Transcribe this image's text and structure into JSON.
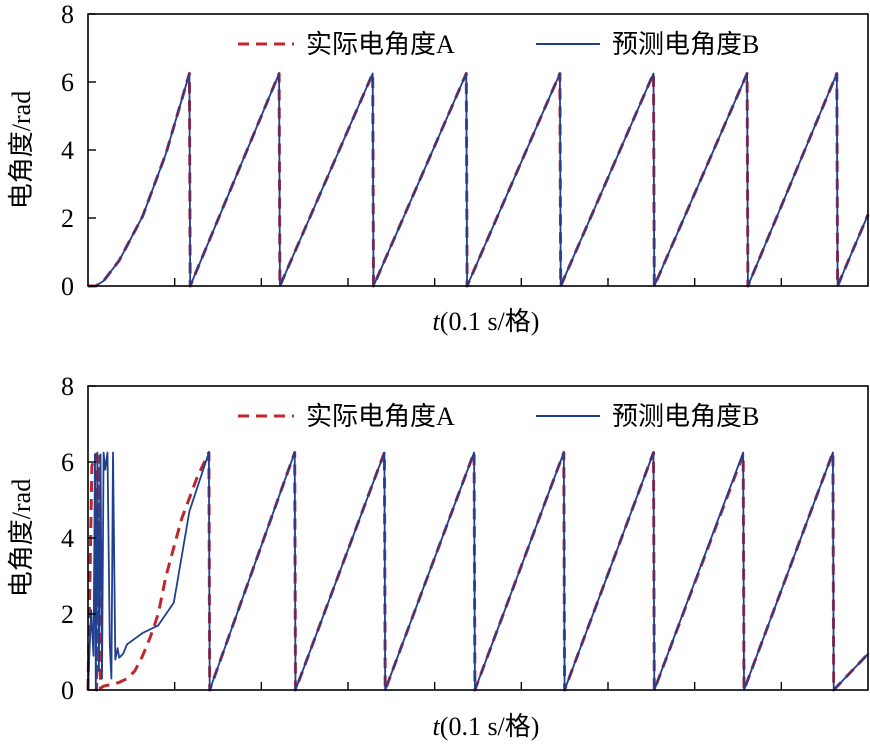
{
  "colors": {
    "actual": "#c0272d",
    "predicted": "#1f3f8f",
    "axis": "#000000"
  },
  "chart_data": [
    {
      "type": "line",
      "xlabel_italic": "t",
      "xlabel_rest": "(0.1 s/格)",
      "ylabel": "电角度/rad",
      "ylim": [
        0,
        8
      ],
      "yticks": [
        "0",
        "2",
        "4",
        "6",
        "8"
      ],
      "xlim": [
        0,
        1
      ],
      "xtick_count": 9,
      "legend_position": "top-right",
      "series": [
        {
          "name": "实际电角度A",
          "style": "dashed",
          "x": [
            0,
            0.01,
            0.02,
            0.04,
            0.07,
            0.1,
            0.13,
            0.131,
            0.245,
            0.246,
            0.365,
            0.366,
            0.485,
            0.486,
            0.605,
            0.606,
            0.725,
            0.726,
            0.845,
            0.846,
            0.96,
            0.961,
            1.0
          ],
          "y": [
            0,
            0,
            0.15,
            0.75,
            2.05,
            3.9,
            6.25,
            0,
            6.25,
            0,
            6.25,
            0,
            6.25,
            0,
            6.25,
            0,
            6.25,
            0,
            6.25,
            0,
            6.25,
            0,
            2.1
          ]
        },
        {
          "name": "预测电角度B",
          "style": "solid",
          "x": [
            0,
            0.01,
            0.02,
            0.04,
            0.07,
            0.1,
            0.13,
            0.131,
            0.245,
            0.246,
            0.365,
            0.366,
            0.485,
            0.486,
            0.605,
            0.606,
            0.725,
            0.726,
            0.845,
            0.846,
            0.96,
            0.961,
            1.0
          ],
          "y": [
            0,
            0,
            0.15,
            0.75,
            2.05,
            3.9,
            6.25,
            0,
            6.25,
            0,
            6.25,
            0,
            6.25,
            0,
            6.25,
            0,
            6.25,
            0,
            6.25,
            0,
            6.25,
            0,
            2.1
          ]
        }
      ]
    },
    {
      "type": "line",
      "xlabel_italic": "t",
      "xlabel_rest": "(0.1 s/格)",
      "ylabel": "电角度/rad",
      "ylim": [
        0,
        8
      ],
      "yticks": [
        "0",
        "2",
        "4",
        "6",
        "8"
      ],
      "xlim": [
        0,
        1
      ],
      "xtick_count": 9,
      "legend_position": "top-right",
      "series": [
        {
          "name": "实际电角度A",
          "style": "dashed",
          "x": [
            0,
            0.005,
            0.01,
            0.011,
            0.015,
            0.016,
            0.02,
            0.03,
            0.04,
            0.05,
            0.06,
            0.07,
            0.08,
            0.09,
            0.1,
            0.12,
            0.14,
            0.155,
            0.156,
            0.265,
            0.266,
            0.38,
            0.381,
            0.495,
            0.496,
            0.61,
            0.611,
            0.725,
            0.726,
            0.84,
            0.841,
            0.955,
            0.956,
            1.0
          ],
          "y": [
            0,
            5.9,
            6.2,
            0,
            6.15,
            0.05,
            0.1,
            0.15,
            0.2,
            0.3,
            0.5,
            0.9,
            1.4,
            2.0,
            3.0,
            4.5,
            5.6,
            6.25,
            0,
            6.25,
            0,
            6.25,
            0,
            6.25,
            0,
            6.25,
            0,
            6.25,
            0,
            6.2,
            0,
            6.25,
            0,
            0.95
          ]
        },
        {
          "name": "预测电角度B",
          "style": "solid",
          "x": [
            0,
            0.004,
            0.007,
            0.009,
            0.01,
            0.012,
            0.014,
            0.016,
            0.018,
            0.02,
            0.022,
            0.025,
            0.028,
            0.03,
            0.032,
            0.035,
            0.038,
            0.04,
            0.045,
            0.05,
            0.06,
            0.07,
            0.09,
            0.11,
            0.13,
            0.155,
            0.156,
            0.265,
            0.266,
            0.38,
            0.381,
            0.495,
            0.496,
            0.61,
            0.611,
            0.725,
            0.726,
            0.84,
            0.841,
            0.955,
            0.956,
            1.0
          ],
          "y": [
            0,
            2.1,
            0.9,
            6.2,
            0,
            6.25,
            0.5,
            6.2,
            0.3,
            6.25,
            5.8,
            6.25,
            1.2,
            0.3,
            6.25,
            0.8,
            1.1,
            0.85,
            0.95,
            1.2,
            1.35,
            1.5,
            1.7,
            2.3,
            4.7,
            6.25,
            0,
            6.25,
            0,
            6.25,
            0,
            6.25,
            0,
            6.25,
            0,
            6.25,
            0,
            6.25,
            0,
            6.25,
            0,
            0.95
          ]
        }
      ]
    }
  ]
}
